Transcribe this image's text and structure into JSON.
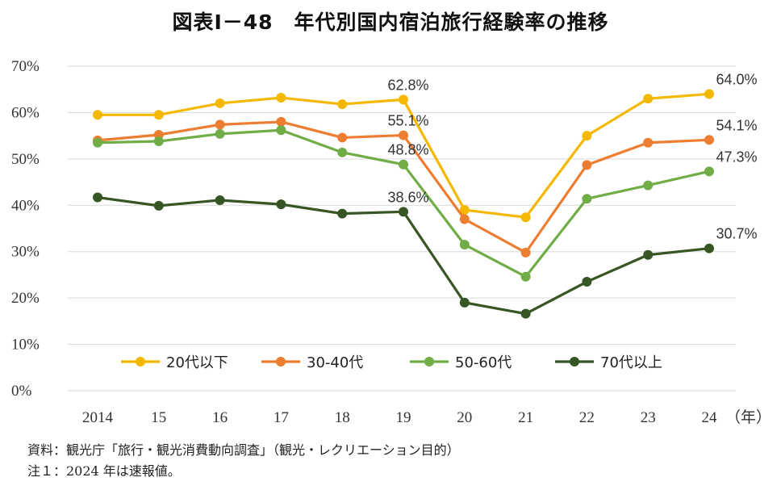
{
  "chart_data": {
    "type": "line",
    "title": "図表Ⅰ－48　年代別国内宿泊旅行経験率の推移",
    "categories": [
      "2014",
      "15",
      "16",
      "17",
      "18",
      "19",
      "20",
      "21",
      "22",
      "23",
      "24"
    ],
    "x_unit": "（年）",
    "ylim": [
      0,
      70
    ],
    "y_ticks": [
      "0%",
      "10%",
      "20%",
      "30%",
      "40%",
      "50%",
      "60%",
      "70%"
    ],
    "grid": true,
    "legend_position": "bottom-inside",
    "series": [
      {
        "name": "20代以下",
        "color": "#F5B800",
        "values": [
          59.5,
          59.5,
          62.0,
          63.2,
          61.8,
          62.8,
          39.0,
          37.4,
          55.0,
          63.0,
          64.0
        ]
      },
      {
        "name": "30-40代",
        "color": "#ED7D31",
        "values": [
          54.0,
          55.2,
          57.4,
          58.0,
          54.6,
          55.1,
          37.0,
          29.8,
          48.7,
          53.5,
          54.1
        ]
      },
      {
        "name": "50-60代",
        "color": "#70AD47",
        "values": [
          53.5,
          53.8,
          55.4,
          56.2,
          51.4,
          48.8,
          31.5,
          24.6,
          41.4,
          44.3,
          47.3
        ]
      },
      {
        "name": "70代以上",
        "color": "#375623",
        "values": [
          41.7,
          39.9,
          41.1,
          40.2,
          38.2,
          38.6,
          19.0,
          16.6,
          23.5,
          29.3,
          30.7
        ]
      }
    ],
    "data_labels": [
      {
        "series": 0,
        "index": 5,
        "text": "62.8%"
      },
      {
        "series": 1,
        "index": 5,
        "text": "55.1%"
      },
      {
        "series": 2,
        "index": 5,
        "text": "48.8%"
      },
      {
        "series": 3,
        "index": 5,
        "text": "38.6%"
      },
      {
        "series": 0,
        "index": 10,
        "text": "64.0%"
      },
      {
        "series": 1,
        "index": 10,
        "text": "54.1%"
      },
      {
        "series": 2,
        "index": 10,
        "text": "47.3%"
      },
      {
        "series": 3,
        "index": 10,
        "text": "30.7%"
      }
    ],
    "legend_labels": [
      "20代以下",
      "30‑40代",
      "50‑60代",
      "70代以上"
    ]
  },
  "notes": {
    "source": "資料：観光庁「旅行・観光消費動向調査」（観光・レクリエーション目的）",
    "note1": "注１：2024 年は速報値。"
  }
}
